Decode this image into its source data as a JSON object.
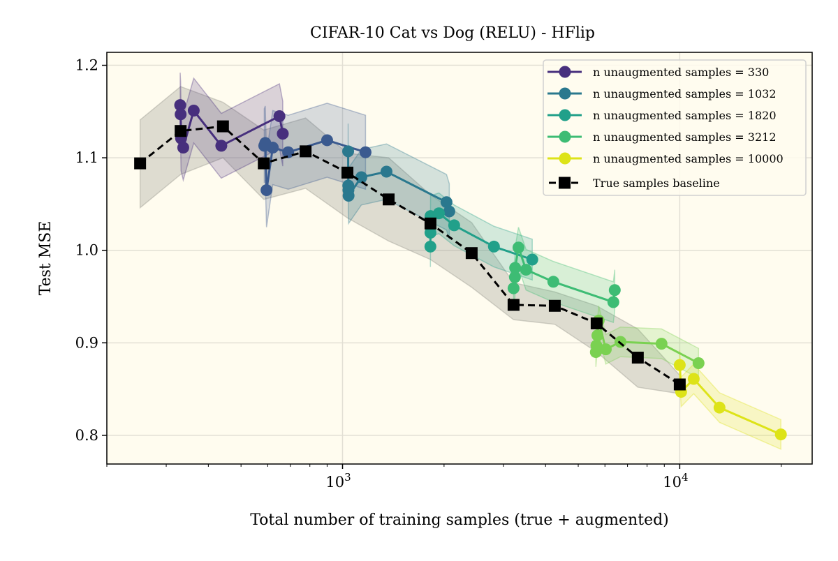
{
  "chart_data": {
    "type": "line",
    "title": "CIFAR-10 Cat vs Dog (RELU) - HFlip",
    "xlabel": "Total number of training samples (true + augmented)",
    "ylabel": "Test MSE",
    "xscale": "log",
    "xlim": [
      200,
      24700
    ],
    "ylim": [
      0.769,
      1.214
    ],
    "xticks": [
      {
        "value": 1000,
        "base": "10",
        "exp": "3"
      },
      {
        "value": 10000,
        "base": "10",
        "exp": "4"
      }
    ],
    "yticks": [
      {
        "value": 0.8,
        "label": "0.8"
      },
      {
        "value": 0.9,
        "label": "0.9"
      },
      {
        "value": 1.0,
        "label": "1.0"
      },
      {
        "value": 1.1,
        "label": "1.1"
      },
      {
        "value": 1.2,
        "label": "1.2"
      }
    ],
    "grid": true,
    "background": "#fffcef",
    "legend_position": "top-right",
    "series": [
      {
        "name": "n unaugmented samples = 330",
        "color": "#472f7d",
        "in_legend": true,
        "spread": 0.035,
        "x": [
          330,
          331,
          332,
          337,
          362,
          437,
          650,
          665
        ],
        "y": [
          1.157,
          1.147,
          1.121,
          1.111,
          1.151,
          1.113,
          1.145,
          1.126
        ]
      },
      {
        "color": "#3b5a8f",
        "in_legend": false,
        "spread": 0.04,
        "x": [
          586,
          590,
          595,
          621,
          690,
          900,
          1170
        ],
        "y": [
          1.113,
          1.116,
          1.065,
          1.111,
          1.106,
          1.119,
          1.106
        ]
      },
      {
        "name": "n unaugmented samples = 1032",
        "color": "#2a788e",
        "in_legend": true,
        "spread": 0.03,
        "x": [
          1039,
          1040,
          1041,
          1042,
          1137,
          1350,
          2034,
          2073
        ],
        "y": [
          1.107,
          1.07,
          1.065,
          1.059,
          1.079,
          1.085,
          1.052,
          1.042
        ]
      },
      {
        "name": "n unaugmented samples = 1820",
        "color": "#21a08a",
        "in_legend": true,
        "spread": 0.022,
        "x": [
          1822,
          1823,
          1824,
          1931,
          2143,
          2812,
          3653
        ],
        "y": [
          1.004,
          1.019,
          1.037,
          1.04,
          1.027,
          1.004,
          0.99
        ]
      },
      {
        "name": "n unaugmented samples = 3212",
        "color": "#3dbc74",
        "in_legend": true,
        "spread": 0.022,
        "x": [
          3215,
          3245,
          3250,
          3325,
          3501,
          4218,
          6355,
          6416
        ],
        "y": [
          0.959,
          0.971,
          0.981,
          1.003,
          0.979,
          0.966,
          0.944,
          0.957
        ]
      },
      {
        "color": "#7ad151",
        "in_legend": false,
        "spread": 0.016,
        "x": [
          5640,
          5660,
          5700,
          5750,
          6035,
          6670,
          8830,
          11370
        ],
        "y": [
          0.89,
          0.897,
          0.908,
          0.924,
          0.893,
          0.901,
          0.899,
          0.878
        ]
      },
      {
        "name": "n unaugmented samples = 10000",
        "color": "#dde318",
        "in_legend": true,
        "spread": 0.016,
        "x": [
          10000,
          10095,
          11000,
          13120,
          19950
        ],
        "y": [
          0.876,
          0.847,
          0.861,
          0.83,
          0.801
        ]
      }
    ],
    "baseline": {
      "name": "True samples baseline",
      "color": "#000000",
      "x": [
        251,
        331,
        442,
        584,
        777,
        1034,
        1370,
        1823,
        2415,
        3215,
        4260,
        5670,
        7510,
        10000
      ],
      "y": [
        1.094,
        1.129,
        1.134,
        1.094,
        1.107,
        1.084,
        1.055,
        1.029,
        0.997,
        0.941,
        0.94,
        0.921,
        0.884,
        0.855
      ],
      "lower": [
        1.046,
        1.082,
        1.1,
        1.055,
        1.067,
        1.035,
        1.01,
        0.99,
        0.96,
        0.925,
        0.92,
        0.89,
        0.852,
        0.845
      ],
      "upper": [
        1.141,
        1.177,
        1.16,
        1.13,
        1.143,
        1.105,
        1.1,
        1.06,
        1.03,
        0.965,
        0.955,
        0.94,
        0.915,
        0.865
      ]
    }
  }
}
